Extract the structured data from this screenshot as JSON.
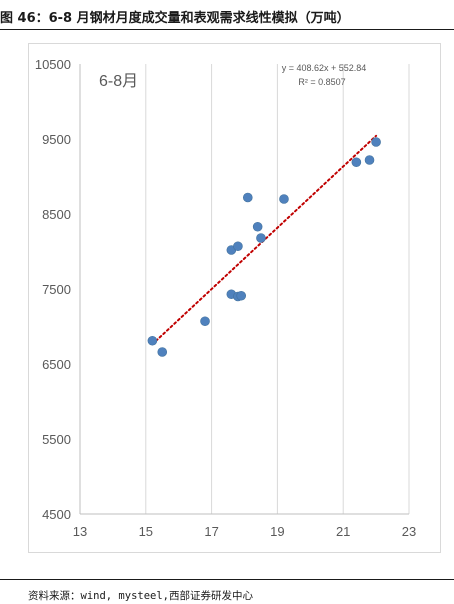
{
  "figure": {
    "title": "图 46：6-8 月钢材月度成交量和表观需求线性模拟（万吨）",
    "source": "资料来源：wind, mysteel,西部证券研发中心"
  },
  "chart_data": {
    "type": "scatter",
    "inset_label": "6-8月",
    "equation": "y = 408.62x + 552.84",
    "r_squared": "R² = 0.8507",
    "trendline": {
      "slope": 408.62,
      "intercept": 552.84,
      "x_range": [
        15.2,
        22.0
      ],
      "style": "dotted",
      "color": "#c00000"
    },
    "xlim": [
      13,
      23
    ],
    "ylim": [
      4500,
      10500
    ],
    "x_ticks": [
      13,
      15,
      17,
      19,
      21,
      23
    ],
    "y_ticks": [
      4500,
      5500,
      6500,
      7500,
      8500,
      9500,
      10500
    ],
    "grid": "vertical",
    "marker_color": "#4f81bd",
    "points": [
      {
        "x": 15.2,
        "y": 6810
      },
      {
        "x": 15.5,
        "y": 6660
      },
      {
        "x": 16.8,
        "y": 7070
      },
      {
        "x": 17.6,
        "y": 7430
      },
      {
        "x": 17.8,
        "y": 7400
      },
      {
        "x": 17.9,
        "y": 7410
      },
      {
        "x": 17.6,
        "y": 8020
      },
      {
        "x": 17.8,
        "y": 8070
      },
      {
        "x": 18.1,
        "y": 8720
      },
      {
        "x": 18.4,
        "y": 8330
      },
      {
        "x": 18.5,
        "y": 8180
      },
      {
        "x": 19.2,
        "y": 8700
      },
      {
        "x": 21.4,
        "y": 9190
      },
      {
        "x": 21.8,
        "y": 9220
      },
      {
        "x": 22.0,
        "y": 9460
      }
    ]
  }
}
